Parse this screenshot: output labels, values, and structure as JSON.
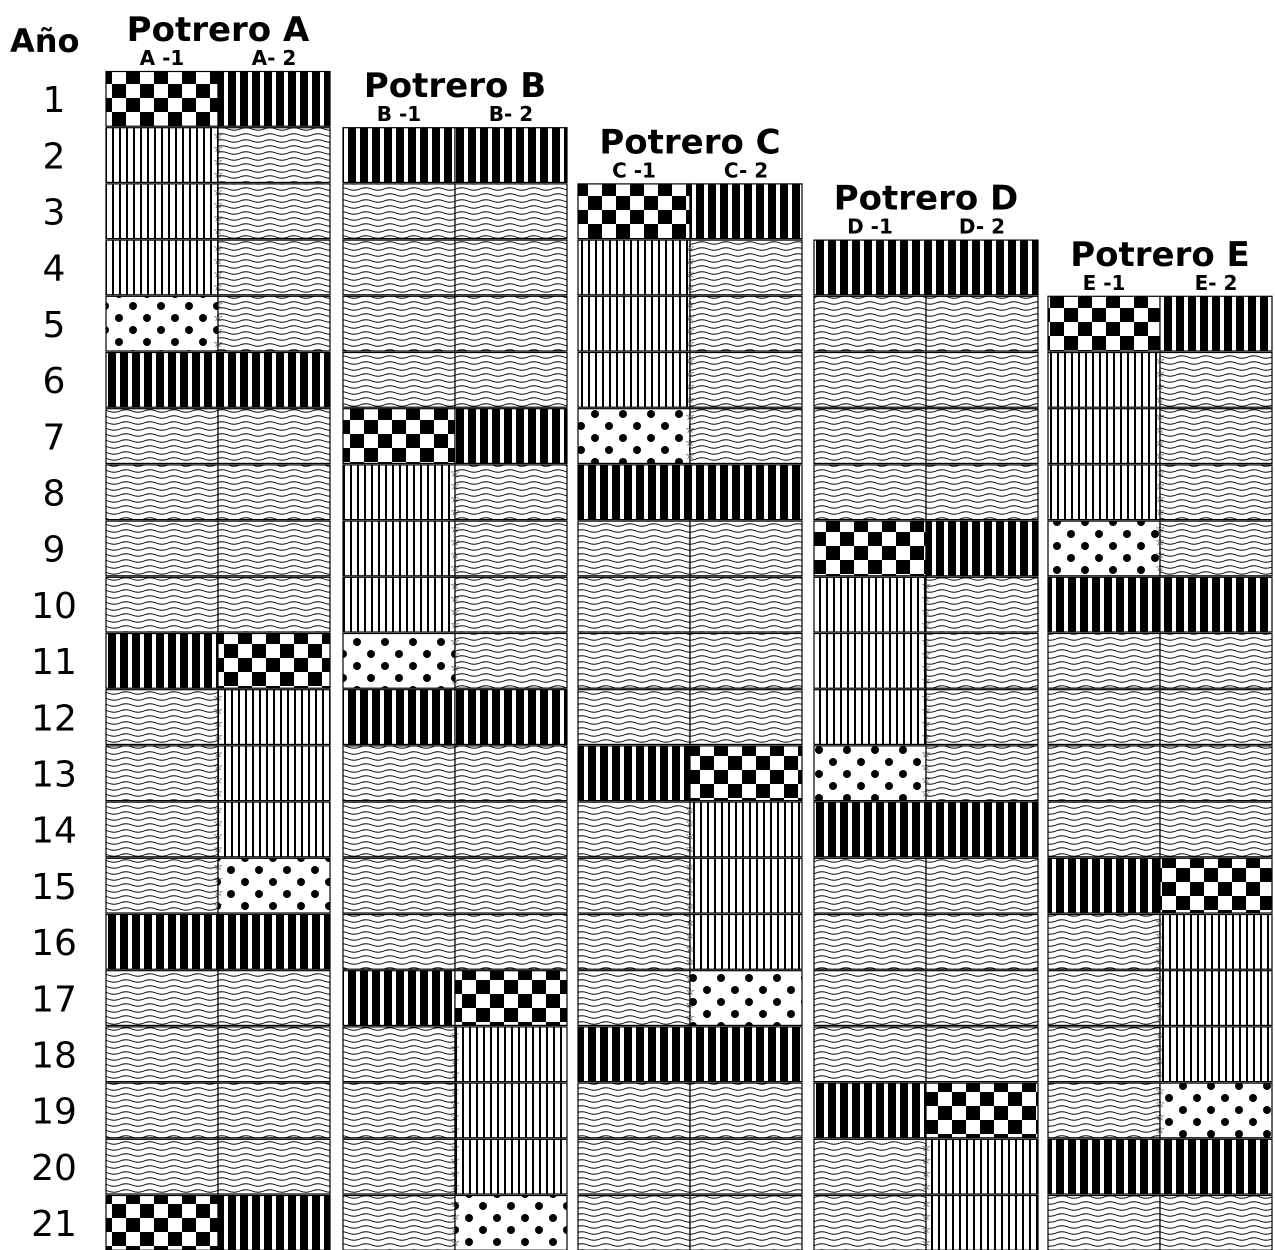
{
  "axis_label": "Año",
  "years": [
    "1",
    "2",
    "3",
    "4",
    "5",
    "6",
    "7",
    "8",
    "9",
    "10",
    "11",
    "12",
    "13",
    "14",
    "15",
    "16",
    "17",
    "18",
    "19",
    "20",
    "21"
  ],
  "potreros": [
    {
      "name": "Potrero A",
      "parcels": [
        "A -1",
        "A- 2"
      ],
      "start_year": 1,
      "rows": [
        [
          "checker",
          "solid"
        ],
        [
          "fine",
          "wavy"
        ],
        [
          "fine",
          "wavy"
        ],
        [
          "fine",
          "wavy"
        ],
        [
          "dots",
          "wavy"
        ],
        [
          "solid",
          "solid"
        ],
        [
          "wavy",
          "wavy"
        ],
        [
          "wavy",
          "wavy"
        ],
        [
          "wavy",
          "wavy"
        ],
        [
          "wavy",
          "wavy"
        ],
        [
          "solid",
          "checker"
        ],
        [
          "wavy",
          "fine"
        ],
        [
          "wavy",
          "fine"
        ],
        [
          "wavy",
          "fine"
        ],
        [
          "wavy",
          "dots"
        ],
        [
          "solid",
          "solid"
        ],
        [
          "wavy",
          "wavy"
        ],
        [
          "wavy",
          "wavy"
        ],
        [
          "wavy",
          "wavy"
        ],
        [
          "wavy",
          "wavy"
        ],
        [
          "checker",
          "solid"
        ]
      ]
    },
    {
      "name": "Potrero B",
      "parcels": [
        "B -1",
        "B- 2"
      ],
      "start_year": 2,
      "rows": [
        [
          "solid",
          "solid"
        ],
        [
          "wavy",
          "wavy"
        ],
        [
          "wavy",
          "wavy"
        ],
        [
          "wavy",
          "wavy"
        ],
        [
          "wavy",
          "wavy"
        ],
        [
          "checker",
          "solid"
        ],
        [
          "fine",
          "wavy"
        ],
        [
          "fine",
          "wavy"
        ],
        [
          "fine",
          "wavy"
        ],
        [
          "dots",
          "wavy"
        ],
        [
          "solid",
          "solid"
        ],
        [
          "wavy",
          "wavy"
        ],
        [
          "wavy",
          "wavy"
        ],
        [
          "wavy",
          "wavy"
        ],
        [
          "wavy",
          "wavy"
        ],
        [
          "solid",
          "checker"
        ],
        [
          "wavy",
          "fine"
        ],
        [
          "wavy",
          "fine"
        ],
        [
          "wavy",
          "fine"
        ],
        [
          "wavy",
          "dots"
        ]
      ]
    },
    {
      "name": "Potrero C",
      "parcels": [
        "C -1",
        "C- 2"
      ],
      "start_year": 3,
      "rows": [
        [
          "checker",
          "solid"
        ],
        [
          "fine",
          "wavy"
        ],
        [
          "fine",
          "wavy"
        ],
        [
          "fine",
          "wavy"
        ],
        [
          "dots",
          "wavy"
        ],
        [
          "solid",
          "solid"
        ],
        [
          "wavy",
          "wavy"
        ],
        [
          "wavy",
          "wavy"
        ],
        [
          "wavy",
          "wavy"
        ],
        [
          "wavy",
          "wavy"
        ],
        [
          "solid",
          "checker"
        ],
        [
          "wavy",
          "fine"
        ],
        [
          "wavy",
          "fine"
        ],
        [
          "wavy",
          "fine"
        ],
        [
          "wavy",
          "dots"
        ],
        [
          "solid",
          "solid"
        ],
        [
          "wavy",
          "wavy"
        ],
        [
          "wavy",
          "wavy"
        ],
        [
          "wavy",
          "wavy"
        ]
      ]
    },
    {
      "name": "Potrero D",
      "parcels": [
        "D -1",
        "D- 2"
      ],
      "start_year": 4,
      "rows": [
        [
          "solid",
          "solid"
        ],
        [
          "wavy",
          "wavy"
        ],
        [
          "wavy",
          "wavy"
        ],
        [
          "wavy",
          "wavy"
        ],
        [
          "wavy",
          "wavy"
        ],
        [
          "checker",
          "solid"
        ],
        [
          "fine",
          "wavy"
        ],
        [
          "fine",
          "wavy"
        ],
        [
          "fine",
          "wavy"
        ],
        [
          "dots",
          "wavy"
        ],
        [
          "solid",
          "solid"
        ],
        [
          "wavy",
          "wavy"
        ],
        [
          "wavy",
          "wavy"
        ],
        [
          "wavy",
          "wavy"
        ],
        [
          "wavy",
          "wavy"
        ],
        [
          "solid",
          "checker"
        ],
        [
          "wavy",
          "fine"
        ],
        [
          "wavy",
          "fine"
        ]
      ]
    },
    {
      "name": "Potrero E",
      "parcels": [
        "E -1",
        "E- 2"
      ],
      "start_year": 5,
      "rows": [
        [
          "checker",
          "solid"
        ],
        [
          "fine",
          "wavy"
        ],
        [
          "fine",
          "wavy"
        ],
        [
          "fine",
          "wavy"
        ],
        [
          "dots",
          "wavy"
        ],
        [
          "solid",
          "solid"
        ],
        [
          "wavy",
          "wavy"
        ],
        [
          "wavy",
          "wavy"
        ],
        [
          "wavy",
          "wavy"
        ],
        [
          "wavy",
          "wavy"
        ],
        [
          "solid",
          "checker"
        ],
        [
          "wavy",
          "fine"
        ],
        [
          "wavy",
          "fine"
        ],
        [
          "wavy",
          "fine"
        ],
        [
          "wavy",
          "dots"
        ],
        [
          "solid",
          "solid"
        ],
        [
          "wavy",
          "wavy"
        ]
      ]
    }
  ]
}
